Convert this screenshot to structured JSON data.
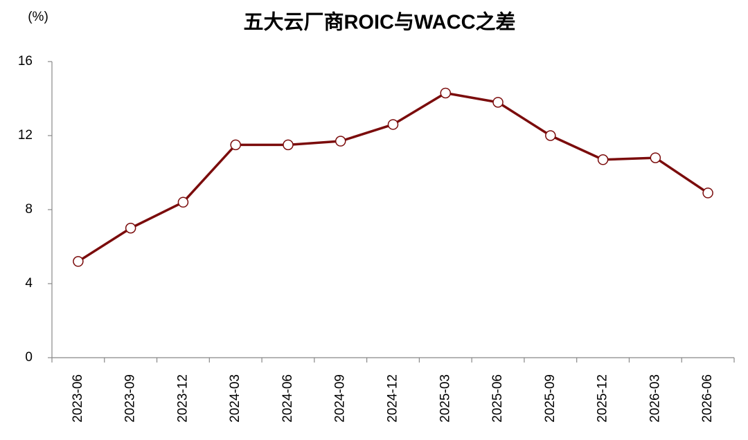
{
  "chart_data": {
    "type": "line",
    "title": "五大云厂商ROIC与WACC之差",
    "y_label": "(%)",
    "categories": [
      "2023-06",
      "2023-09",
      "2023-12",
      "2024-03",
      "2024-06",
      "2024-09",
      "2024-12",
      "2025-03",
      "2025-06",
      "2025-09",
      "2025-12",
      "2026-03",
      "2026-06"
    ],
    "series": [
      {
        "name": "ROIC与WACC之差",
        "color": "#7b0c0c",
        "values": [
          5.2,
          7.0,
          8.4,
          11.5,
          11.5,
          11.7,
          12.6,
          14.3,
          13.8,
          12.0,
          10.7,
          10.8,
          8.9
        ]
      }
    ],
    "ylim": [
      0,
      16
    ],
    "yticks": [
      0,
      4,
      8,
      12,
      16
    ],
    "grid": false,
    "legend": false
  }
}
